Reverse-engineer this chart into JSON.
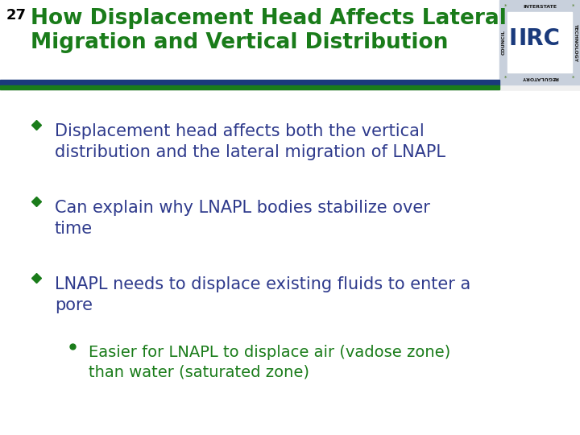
{
  "slide_number": "27",
  "title_line1": "How Displacement Head Affects Lateral",
  "title_line2": "Migration and Vertical Distribution",
  "title_color": "#1a7c1a",
  "slide_number_color": "#000000",
  "background_color": "#f0f0f0",
  "header_bar_blue": "#1a3a7c",
  "header_bar_green": "#1a7c1a",
  "bullet_color": "#2e3a8c",
  "bullet_diamond_color": "#1a7c1a",
  "sub_bullet_color": "#1a7c1a",
  "logo_bg": "#c8d0dc",
  "logo_border": "#2e4a7c",
  "logo_text_color": "#1a3a7c",
  "logo_small_text": "#1a1a1a",
  "bullets": [
    "Displacement head affects both the vertical\ndistribution and the lateral migration of LNAPL",
    "Can explain why LNAPL bodies stabilize over\ntime",
    "LNAPL needs to displace existing fluids to enter a\npore"
  ],
  "sub_bullets": [
    "Easier for LNAPL to displace air (vadose zone)\nthan water (saturated zone)"
  ],
  "bullet_fontsize": 15,
  "sub_bullet_fontsize": 14,
  "title_fontsize": 19,
  "slide_num_fontsize": 13
}
